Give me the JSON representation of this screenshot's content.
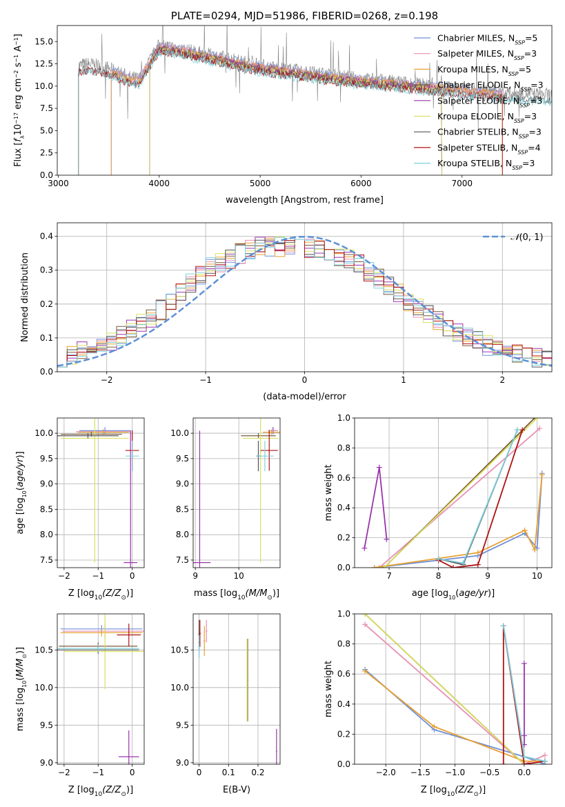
{
  "colors": {
    "chabrier_miles": "#6f8fd8",
    "salpeter_miles": "#e88fb4",
    "kroupa_miles": "#e8a030",
    "chabrier_elodie": "#7a5a3a",
    "salpeter_elodie": "#9933aa",
    "kroupa_elodie": "#d8e060",
    "chabrier_stelib": "#555555",
    "salpeter_stelib": "#b01010",
    "kroupa_stelib": "#7fd0dc",
    "normal_curve": "#5b8fd6",
    "data_spectrum": "#808080"
  },
  "legend_entries": [
    {
      "pre": "Chabrier MILES, N",
      "sub": "SSP",
      "post": "=5",
      "color": "chabrier_miles"
    },
    {
      "pre": "Salpeter MILES, N",
      "sub": "SSP",
      "post": "=3",
      "color": "salpeter_miles"
    },
    {
      "pre": "Kroupa MILES, N",
      "sub": "SSP",
      "post": "=5",
      "color": "kroupa_miles"
    },
    {
      "pre": "Chabrier ELODIE, N",
      "sub": "SSP",
      "post": "=3",
      "color": "chabrier_elodie"
    },
    {
      "pre": "Salpeter ELODIE, N",
      "sub": "SSP",
      "post": "=3",
      "color": "salpeter_elodie"
    },
    {
      "pre": "Kroupa ELODIE, N",
      "sub": "SSP",
      "post": "=3",
      "color": "kroupa_elodie"
    },
    {
      "pre": "Chabrier STELIB, N",
      "sub": "SSP",
      "post": "=3",
      "color": "chabrier_stelib"
    },
    {
      "pre": "Salpeter STELIB, N",
      "sub": "SSP",
      "post": "=4",
      "color": "salpeter_stelib"
    },
    {
      "pre": "Kroupa STELIB, N",
      "sub": "SSP",
      "post": "=3",
      "color": "kroupa_stelib"
    }
  ],
  "chart_data": [
    {
      "id": "spectrum",
      "type": "line",
      "title": "PLATE=0294, MJD=51986, FIBERID=0268, z=0.198",
      "xlabel": "wavelength [Angstrom, rest frame]",
      "ylabel_parts": [
        "Flux [",
        "f",
        "λ",
        "10",
        "−17",
        " erg cm",
        "−2",
        " s",
        "−1",
        " A",
        "−1",
        "]"
      ],
      "xlim": [
        2990,
        7890
      ],
      "ylim": [
        0,
        16.8
      ],
      "xticks": [
        3000,
        4000,
        5000,
        6000,
        7000
      ],
      "yticks": [
        0.0,
        2.5,
        5.0,
        7.5,
        10.0,
        12.5,
        15.0
      ],
      "grid": false,
      "legend_placement": "top-right",
      "data_range": [
        3200,
        7900
      ],
      "model_ranges": [
        {
          "series": "chabrier_miles",
          "start": 3525,
          "end": 7400
        },
        {
          "series": "salpeter_miles",
          "start": 3525,
          "end": 7400
        },
        {
          "series": "kroupa_miles",
          "start": 3525,
          "end": 7400
        },
        {
          "series": "chabrier_elodie",
          "start": 3905,
          "end": 6800
        },
        {
          "series": "salpeter_elodie",
          "start": 3905,
          "end": 6800
        },
        {
          "series": "kroupa_elodie",
          "start": 3905,
          "end": 6800
        },
        {
          "series": "chabrier_stelib",
          "start": 3200,
          "end": 7900
        },
        {
          "series": "salpeter_stelib",
          "start": 3200,
          "end": 7400
        },
        {
          "series": "kroupa_stelib",
          "start": 3200,
          "end": 7900
        }
      ],
      "continuum": [
        [
          3200,
          12.3
        ],
        [
          3300,
          12.5
        ],
        [
          3500,
          12.0
        ],
        [
          3700,
          11.0
        ],
        [
          3800,
          10.8
        ],
        [
          4000,
          14.6
        ],
        [
          4200,
          14.2
        ],
        [
          4500,
          13.5
        ],
        [
          5000,
          12.3
        ],
        [
          5500,
          11.5
        ],
        [
          6000,
          10.8
        ],
        [
          6500,
          10.3
        ],
        [
          7000,
          9.7
        ],
        [
          7400,
          9.3
        ],
        [
          7900,
          9.0
        ]
      ]
    },
    {
      "id": "residuals",
      "type": "histogram",
      "xlabel": "(data-model)/error",
      "ylabel": "Normed distribution",
      "xlim": [
        -2.5,
        2.5
      ],
      "ylim": [
        0,
        0.44
      ],
      "xticks": [
        -2,
        -1,
        0,
        1,
        2
      ],
      "xtick_labels": [
        "−2",
        "−1",
        "0",
        "1",
        "2"
      ],
      "yticks": [
        0.0,
        0.1,
        0.2,
        0.3,
        0.4
      ],
      "grid": true,
      "legend_label_pre": "𝒩",
      "legend_label_post": "(0, 1)",
      "legend_placement": "top-right",
      "bin_width": 0.1,
      "envelope": [
        [
          -2.5,
          0.04
        ],
        [
          -2.0,
          0.08
        ],
        [
          -1.5,
          0.17
        ],
        [
          -1.0,
          0.3
        ],
        [
          -0.5,
          0.37
        ],
        [
          0.0,
          0.37
        ],
        [
          0.5,
          0.33
        ],
        [
          1.0,
          0.22
        ],
        [
          1.5,
          0.12
        ],
        [
          2.0,
          0.06
        ],
        [
          2.5,
          0.03
        ]
      ],
      "normal_pdf": {
        "mean": 0,
        "sigma": 1
      }
    },
    {
      "id": "age_vs_Z",
      "type": "errorbar",
      "xlabel_pre": "Z [log",
      "xlabel_mid": "10",
      "xlabel_post": "(Z/Z",
      "xlabel_sun": "⊙",
      "xlabel_end": ")]",
      "ylabel": "age  [log10(age/yr)]",
      "xlim": [
        -2.2,
        0.35
      ],
      "ylim": [
        7.35,
        10.3
      ],
      "xticks": [
        -2,
        -1,
        0
      ],
      "xtick_labels": [
        "−2",
        "−1",
        "0"
      ],
      "yticks": [
        7.5,
        8.0,
        8.5,
        9.0,
        9.5,
        10.0
      ],
      "grid": true,
      "points": [
        {
          "series": "chabrier_miles",
          "x": -0.8,
          "xerr": 0.75,
          "y": 10.05,
          "yerr": 0.07
        },
        {
          "series": "salpeter_miles",
          "x": -0.85,
          "xerr": 0.8,
          "y": 10.03,
          "yerr": 0.05
        },
        {
          "series": "kroupa_miles",
          "x": -0.85,
          "xerr": 0.75,
          "y": 10.02,
          "yerr": 0.05
        },
        {
          "series": "chabrier_elodie",
          "x": -1.2,
          "xerr": 0.9,
          "y": 9.98,
          "yerr": 0.05
        },
        {
          "series": "salpeter_elodie",
          "x": -0.05,
          "xerr": 0.2,
          "y": 7.45,
          "yerr": 2.6
        },
        {
          "series": "kroupa_elodie",
          "x": -1.1,
          "xerr": 1.0,
          "y": 9.9,
          "yerr": 2.45
        },
        {
          "series": "chabrier_stelib",
          "x": -1.3,
          "xerr": 0.9,
          "y": 9.95,
          "yerr": 0.05
        },
        {
          "series": "salpeter_stelib",
          "x": 0.0,
          "xerr": 0.2,
          "y": 9.66,
          "yerr": 0.4
        },
        {
          "series": "kroupa_stelib",
          "x": 0.0,
          "xerr": 0.2,
          "y": 9.55,
          "yerr": 0.3
        }
      ]
    },
    {
      "id": "age_vs_mass",
      "type": "errorbar",
      "xlabel_pre": "mass [log",
      "xlabel_mid": "10",
      "xlabel_post": "(M/M",
      "xlabel_sun": "⊙",
      "xlabel_end": ")]",
      "xlim": [
        8.95,
        10.95
      ],
      "ylim": [
        7.35,
        10.3
      ],
      "xticks": [
        9,
        10
      ],
      "yticks": [
        7.5,
        8.0,
        8.5,
        9.0,
        9.5,
        10.0
      ],
      "grid": true,
      "points": [
        {
          "series": "chabrier_miles",
          "x": 10.78,
          "xerr": 0.1,
          "y": 10.05,
          "yerr": 0.07
        },
        {
          "series": "salpeter_miles",
          "x": 10.8,
          "xerr": 0.1,
          "y": 10.05,
          "yerr": 0.07
        },
        {
          "series": "kroupa_miles",
          "x": 10.75,
          "xerr": 0.2,
          "y": 10.02,
          "yerr": 0.05
        },
        {
          "series": "chabrier_elodie",
          "x": 10.45,
          "xerr": 0.4,
          "y": 9.95,
          "yerr": 0.05
        },
        {
          "series": "salpeter_elodie",
          "x": 9.1,
          "xerr": 0.25,
          "y": 7.45,
          "yerr": 2.6
        },
        {
          "series": "kroupa_elodie",
          "x": 10.5,
          "xerr": 0.4,
          "y": 9.9,
          "yerr": 2.45
        },
        {
          "series": "chabrier_stelib",
          "x": 10.45,
          "xerr": 0.05,
          "y": 9.55,
          "yerr": 0.3
        },
        {
          "series": "salpeter_stelib",
          "x": 10.7,
          "xerr": 0.2,
          "y": 9.66,
          "yerr": 0.4
        },
        {
          "series": "kroupa_stelib",
          "x": 10.6,
          "xerr": 0.2,
          "y": 9.55,
          "yerr": 0.3
        }
      ]
    },
    {
      "id": "weight_vs_age",
      "type": "line",
      "xlabel": "age  [log10(age/yr)]",
      "ylabel": "mass weight",
      "xlim": [
        6.3,
        10.3
      ],
      "ylim": [
        0,
        1.0
      ],
      "xticks": [
        7,
        8,
        9,
        10
      ],
      "yticks": [
        0.0,
        0.2,
        0.4,
        0.6,
        0.8,
        1.0
      ],
      "grid": true,
      "series": [
        {
          "series": "chabrier_miles",
          "points": [
            [
              6.7,
              0.0
            ],
            [
              8.8,
              0.08
            ],
            [
              9.75,
              0.23
            ],
            [
              10.0,
              0.13
            ],
            [
              10.1,
              0.63
            ]
          ]
        },
        {
          "series": "salpeter_miles",
          "points": [
            [
              6.8,
              0.0
            ],
            [
              10.05,
              0.93
            ]
          ]
        },
        {
          "series": "kroupa_miles",
          "points": [
            [
              6.7,
              0.0
            ],
            [
              8.8,
              0.1
            ],
            [
              9.75,
              0.25
            ],
            [
              9.95,
              0.12
            ],
            [
              10.1,
              0.62
            ]
          ]
        },
        {
          "series": "chabrier_elodie",
          "points": [
            [
              6.9,
              0.0
            ],
            [
              9.95,
              1.0
            ]
          ]
        },
        {
          "series": "salpeter_elodie",
          "points": [
            [
              6.5,
              0.13
            ],
            [
              6.8,
              0.67
            ],
            [
              6.95,
              0.19
            ]
          ]
        },
        {
          "series": "kroupa_elodie",
          "points": [
            [
              6.9,
              0.0
            ],
            [
              10.0,
              1.0
            ]
          ]
        },
        {
          "series": "chabrier_stelib",
          "points": [
            [
              8.0,
              0.06
            ],
            [
              8.5,
              0.02
            ],
            [
              9.6,
              0.92
            ]
          ]
        },
        {
          "series": "salpeter_stelib",
          "points": [
            [
              8.0,
              0.05
            ],
            [
              8.3,
              0.0
            ],
            [
              8.8,
              0.02
            ],
            [
              9.7,
              0.92
            ]
          ]
        },
        {
          "series": "kroupa_stelib",
          "points": [
            [
              8.0,
              0.06
            ],
            [
              8.5,
              0.03
            ],
            [
              9.6,
              0.92
            ]
          ]
        }
      ]
    },
    {
      "id": "mass_vs_Z",
      "type": "errorbar",
      "xlabel_pre": "Z [log",
      "xlabel_mid": "10",
      "xlabel_post": "(Z/Z",
      "xlabel_sun": "⊙",
      "xlabel_end": ")]",
      "ylabel": "mass [log10(M/M⊙)]",
      "xlim": [
        -2.2,
        0.35
      ],
      "ylim": [
        8.98,
        10.98
      ],
      "xticks": [
        -2,
        -1,
        0
      ],
      "xtick_labels": [
        "−2",
        "−1",
        "0"
      ],
      "yticks": [
        9.0,
        9.5,
        10.0,
        10.5
      ],
      "grid": true,
      "points": [
        {
          "series": "chabrier_miles",
          "x": -0.9,
          "xerr": 1.2,
          "y": 10.78,
          "yerr": 0.05
        },
        {
          "series": "salpeter_miles",
          "x": -0.8,
          "xerr": 1.25,
          "y": 10.75,
          "yerr": 0.1
        },
        {
          "series": "kroupa_miles",
          "x": -0.9,
          "xerr": 1.2,
          "y": 10.73,
          "yerr": 0.05
        },
        {
          "series": "chabrier_elodie",
          "x": -1.0,
          "xerr": 1.15,
          "y": 10.55,
          "yerr": 0.05
        },
        {
          "series": "salpeter_elodie",
          "x": -0.1,
          "xerr": 0.3,
          "y": 9.08,
          "yerr": 0.35
        },
        {
          "series": "kroupa_elodie",
          "x": -0.8,
          "xerr": 1.2,
          "y": 10.48,
          "yerr": 0.5
        },
        {
          "series": "chabrier_stelib",
          "x": -1.0,
          "xerr": 1.2,
          "y": 10.5,
          "yerr": 0.05
        },
        {
          "series": "salpeter_stelib",
          "x": -0.1,
          "xerr": 0.35,
          "y": 10.7,
          "yerr": 0.15
        },
        {
          "series": "kroupa_stelib",
          "x": -1.0,
          "xerr": 1.2,
          "y": 10.52,
          "yerr": 0.05
        }
      ]
    },
    {
      "id": "mass_vs_ebv",
      "type": "errorbar",
      "xlabel": "E(B-V)",
      "xlim": [
        -0.02,
        0.275
      ],
      "ylim": [
        8.98,
        10.98
      ],
      "xticks": [
        0.0,
        0.1,
        0.2
      ],
      "yticks": [
        9.0,
        9.5,
        10.0,
        10.5
      ],
      "grid": true,
      "points": [
        {
          "series": "chabrier_miles",
          "x": 0.0,
          "xerr": 0.003,
          "y": 10.6,
          "yerr": 0.2
        },
        {
          "series": "salpeter_miles",
          "x": 0.025,
          "xerr": 0.003,
          "y": 10.75,
          "yerr": 0.15
        },
        {
          "series": "kroupa_miles",
          "x": 0.018,
          "xerr": 0.003,
          "y": 10.62,
          "yerr": 0.2
        },
        {
          "series": "chabrier_elodie",
          "x": 0.165,
          "xerr": 0.002,
          "y": 10.1,
          "yerr": 0.55
        },
        {
          "series": "salpeter_elodie",
          "x": 0.263,
          "xerr": 0.002,
          "y": 9.15,
          "yerr": 0.3
        },
        {
          "series": "kroupa_elodie",
          "x": 0.163,
          "xerr": 0.002,
          "y": 10.1,
          "yerr": 0.55
        },
        {
          "series": "chabrier_stelib",
          "x": 0.0,
          "xerr": 0.003,
          "y": 10.7,
          "yerr": 0.2
        },
        {
          "series": "salpeter_stelib",
          "x": 0.003,
          "xerr": 0.003,
          "y": 10.72,
          "yerr": 0.18
        },
        {
          "series": "kroupa_stelib",
          "x": 0.0,
          "xerr": 0.003,
          "y": 10.55,
          "yerr": 0.15
        }
      ]
    },
    {
      "id": "weight_vs_Z",
      "type": "line",
      "xlabel_pre": "Z [log",
      "xlabel_mid": "10",
      "xlabel_post": "(Z/Z",
      "xlabel_sun": "⊙",
      "xlabel_end": ")]",
      "ylabel": "mass weight",
      "xlim": [
        -2.45,
        0.4
      ],
      "ylim": [
        0,
        1.0
      ],
      "xticks": [
        -2.0,
        -1.5,
        -1.0,
        -0.5,
        0.0
      ],
      "xtick_labels": [
        "−2.0",
        "−1.5",
        "−1.0",
        "−0.5",
        "0.0"
      ],
      "yticks": [
        0.0,
        0.2,
        0.4,
        0.6,
        0.8,
        1.0
      ],
      "grid": true,
      "series": [
        {
          "series": "chabrier_miles",
          "points": [
            [
              -2.3,
              0.63
            ],
            [
              -1.3,
              0.23
            ],
            [
              0.0,
              0.05
            ],
            [
              0.3,
              0.0
            ]
          ]
        },
        {
          "series": "salpeter_miles",
          "points": [
            [
              -2.3,
              0.93
            ],
            [
              0.0,
              0.0
            ],
            [
              0.3,
              0.06
            ]
          ]
        },
        {
          "series": "kroupa_miles",
          "points": [
            [
              -2.3,
              0.62
            ],
            [
              -1.3,
              0.25
            ],
            [
              0.0,
              0.02
            ],
            [
              0.3,
              0.02
            ]
          ]
        },
        {
          "series": "chabrier_elodie",
          "points": [
            [
              -2.3,
              1.0
            ],
            [
              0.0,
              0.0
            ]
          ]
        },
        {
          "series": "salpeter_elodie",
          "points": [
            [
              0.0,
              0.67
            ],
            [
              0.0,
              0.19
            ],
            [
              0.0,
              0.13
            ]
          ]
        },
        {
          "series": "kroupa_elodie",
          "points": [
            [
              -2.3,
              1.0
            ],
            [
              0.0,
              0.0
            ]
          ]
        },
        {
          "series": "chabrier_stelib",
          "points": [
            [
              -0.3,
              0.92
            ],
            [
              0.0,
              0.05
            ],
            [
              0.3,
              0.02
            ]
          ]
        },
        {
          "series": "salpeter_stelib",
          "points": [
            [
              -0.3,
              0.0
            ],
            [
              -0.3,
              0.92
            ],
            [
              0.0,
              0.0
            ],
            [
              0.3,
              0.02
            ]
          ]
        },
        {
          "series": "kroupa_stelib",
          "points": [
            [
              -0.3,
              0.92
            ],
            [
              0.0,
              0.05
            ],
            [
              0.3,
              0.02
            ]
          ]
        }
      ]
    }
  ]
}
